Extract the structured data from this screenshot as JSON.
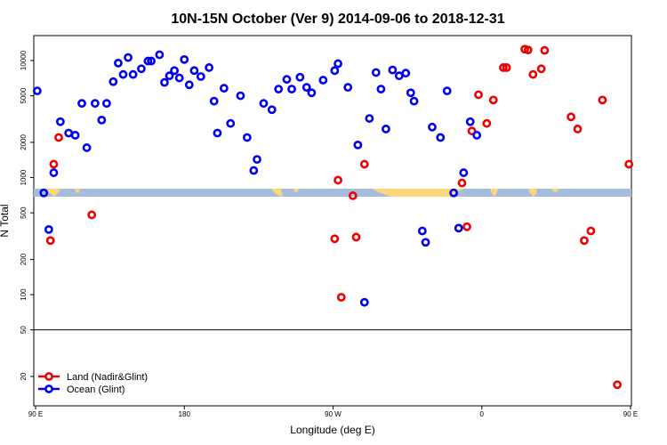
{
  "chart_data": {
    "type": "scatter",
    "title": "10N-15N October (Ver 9)   2014-09-06 to 2018-12-31",
    "xlabel": "Longitude (deg E)",
    "ylabel": "N Total",
    "x_scale": "longitude",
    "y_scale": "log",
    "xlim": [
      90,
      450
    ],
    "ylim": [
      12,
      14000
    ],
    "x_ticks": [
      {
        "value": 90,
        "label": "90 E"
      },
      {
        "value": 180,
        "label": "180"
      },
      {
        "value": 270,
        "label": "90 W"
      },
      {
        "value": 360,
        "label": "0"
      },
      {
        "value": 450,
        "label": "90 E"
      }
    ],
    "y_ticks": [
      {
        "value": 20,
        "label": "20"
      },
      {
        "value": 50,
        "label": "50"
      },
      {
        "value": 100,
        "label": "100"
      },
      {
        "value": 200,
        "label": "200"
      },
      {
        "value": 500,
        "label": "500"
      },
      {
        "value": 1000,
        "label": "1000"
      },
      {
        "value": 2000,
        "label": "2000"
      },
      {
        "value": 5000,
        "label": "5000"
      },
      {
        "value": 10000,
        "label": "10000"
      }
    ],
    "reference_line": 50,
    "legend_position": "bottom-left",
    "series": [
      {
        "name": "Land (Nadir&Glint)",
        "color": "#ee0000",
        "x": [
          99,
          101,
          104,
          124,
          271,
          273,
          275,
          282,
          284,
          289,
          348,
          351,
          354,
          358,
          363,
          367,
          373,
          375,
          386,
          388,
          391,
          396,
          398,
          414,
          418,
          422,
          426,
          433,
          442,
          449
        ],
        "y": [
          290,
          1300,
          2200,
          480,
          300,
          950,
          95,
          700,
          310,
          1300,
          900,
          380,
          2500,
          5100,
          2900,
          4600,
          8700,
          8700,
          12500,
          12300,
          7600,
          8500,
          12200,
          3300,
          2600,
          290,
          350,
          4600,
          17,
          1300
        ]
      },
      {
        "name": "Ocean (Glint)",
        "color": "#0000ee",
        "x": [
          91,
          95,
          98,
          101,
          105,
          110,
          114,
          118,
          121,
          126,
          130,
          133,
          137,
          140,
          143,
          146,
          149,
          154,
          158,
          160,
          165,
          168,
          171,
          174,
          177,
          180,
          183,
          186,
          190,
          195,
          198,
          200,
          204,
          208,
          214,
          218,
          222,
          224,
          228,
          233,
          237,
          242,
          245,
          250,
          254,
          257,
          264,
          271,
          273,
          279,
          285,
          289,
          292,
          296,
          299,
          302,
          306,
          310,
          314,
          317,
          319,
          324,
          326,
          330,
          335,
          339,
          343,
          346,
          349,
          353,
          357
        ],
        "y": [
          5500,
          740,
          360,
          1100,
          3000,
          2400,
          2300,
          4300,
          1800,
          4300,
          3100,
          4300,
          6600,
          9500,
          7600,
          10600,
          7600,
          8500,
          9900,
          9900,
          11200,
          6500,
          7400,
          8200,
          7100,
          10200,
          6200,
          8200,
          7300,
          8700,
          4500,
          2400,
          5800,
          2900,
          5000,
          2200,
          1150,
          1430,
          4300,
          3800,
          5700,
          6900,
          5700,
          7200,
          5900,
          5300,
          6800,
          8200,
          9400,
          5900,
          1900,
          86,
          3200,
          7900,
          5700,
          2600,
          8300,
          7400,
          7800,
          5300,
          4500,
          350,
          280,
          2700,
          2200,
          5500,
          740,
          370,
          1100,
          3000,
          2300
        ]
      }
    ],
    "legend": [
      "Land (Nadir&Glint)",
      "Ocean (Glint)"
    ]
  }
}
